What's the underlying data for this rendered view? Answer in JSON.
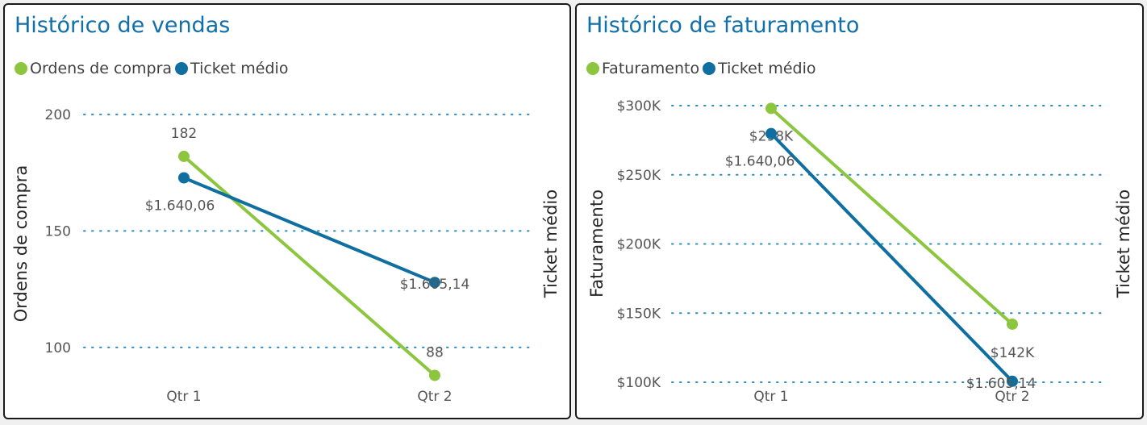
{
  "colors": {
    "green": "#8cc63f",
    "blue": "#0f6fa0",
    "title": "#1170aa",
    "grid": "#2a8cb8"
  },
  "chart_data": [
    {
      "type": "line",
      "title": "Histórico de vendas",
      "categories": [
        "Qtr 1",
        "Qtr 2"
      ],
      "ylabel": "Ordens de compra",
      "ylabel_right": "Ticket médio",
      "ylim": [
        93,
        210
      ],
      "yticks": [
        100,
        150,
        200
      ],
      "ytick_labels": [
        "100",
        "150",
        "200"
      ],
      "grid": true,
      "legend_position": "top-left",
      "series": [
        {
          "name": "Ordens de compra",
          "axis": "left",
          "color": "#8cc63f",
          "values": [
            182,
            88
          ],
          "labels": [
            "182",
            "88"
          ]
        },
        {
          "name": "Ticket médio",
          "axis": "right",
          "color": "#0f6fa0",
          "values": [
            1640.06,
            1605.14
          ],
          "labels": [
            "$1.640,06",
            "$1.605,14"
          ],
          "ylim": [
            1578,
            1669
          ]
        }
      ]
    },
    {
      "type": "line",
      "title": "Histórico de faturamento",
      "categories": [
        "Qtr 1",
        "Qtr 2"
      ],
      "ylabel": "Faturamento",
      "ylabel_right": "Ticket médio",
      "ylim": [
        100000,
        300000
      ],
      "yticks": [
        100000,
        150000,
        200000,
        250000,
        300000
      ],
      "ytick_labels": [
        "$100K",
        "$150K",
        "$200K",
        "$250K",
        "$300K"
      ],
      "grid": true,
      "legend_position": "top-left",
      "series": [
        {
          "name": "Faturamento",
          "axis": "left",
          "color": "#8cc63f",
          "values": [
            298000,
            142000
          ],
          "labels": [
            "$298K",
            "$142K"
          ]
        },
        {
          "name": "Ticket médio",
          "axis": "right",
          "color": "#0f6fa0",
          "values": [
            1640.06,
            1605.14
          ],
          "labels": [
            "$1.640,06",
            "$1.605,14"
          ],
          "ylim": [
            1605,
            1644
          ]
        }
      ]
    }
  ]
}
